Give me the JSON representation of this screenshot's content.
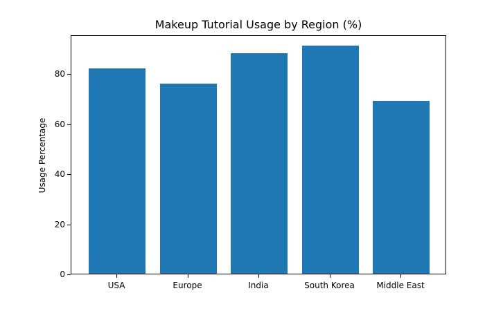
{
  "chart_data": {
    "type": "bar",
    "title": "Makeup Tutorial Usage by Region (%)",
    "xlabel": "",
    "ylabel": "Usage Percentage",
    "categories": [
      "USA",
      "Europe",
      "India",
      "South Korea",
      "Middle East"
    ],
    "values": [
      82,
      76,
      88,
      91,
      69
    ],
    "ylim": [
      0,
      95.55
    ],
    "yticks": [
      0,
      20,
      40,
      60,
      80
    ],
    "grid": false,
    "legend": null,
    "bar_color": "#1f77b4"
  }
}
